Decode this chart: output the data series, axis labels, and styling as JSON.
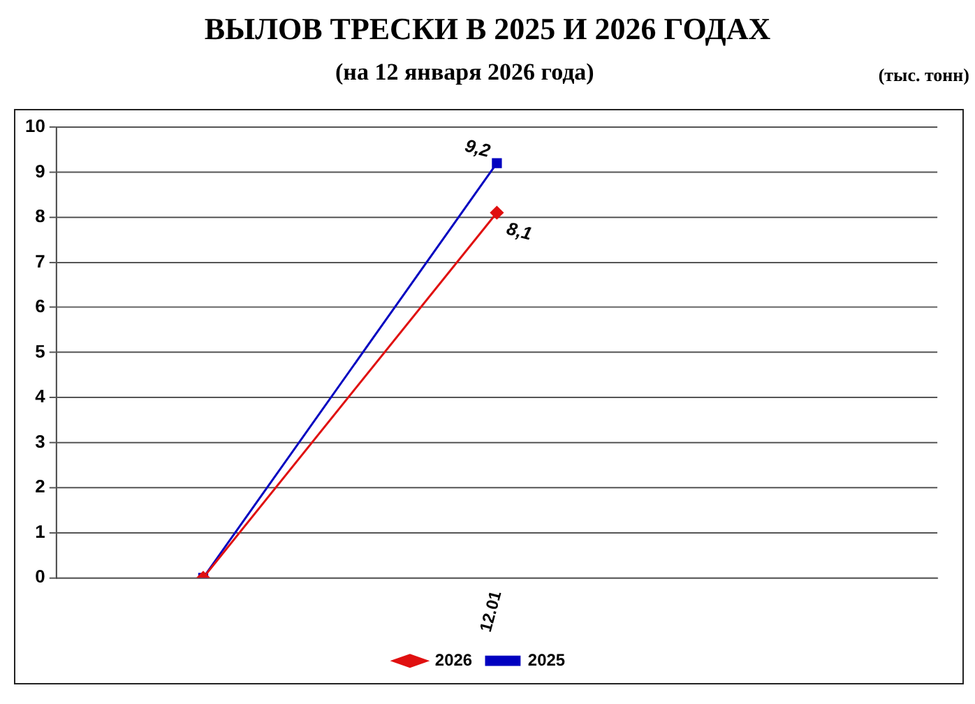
{
  "chart_data": {
    "type": "line",
    "title": "ВЫЛОВ ТРЕСКИ В 2025 И 2026 ГОДАХ",
    "subtitle": "(на 12 января 2026 года)",
    "annotations": [
      "(тыс. тонн)"
    ],
    "categories": [
      null,
      "12.01",
      null
    ],
    "series": [
      {
        "name": "2026",
        "color": "#e01010",
        "marker": "diamond",
        "values": [
          0,
          8.1,
          null
        ],
        "value_labels": [
          null,
          "8,1",
          null
        ]
      },
      {
        "name": "2025",
        "color": "#0000c0",
        "marker": "square",
        "values": [
          0,
          9.2,
          null
        ],
        "value_labels": [
          null,
          "9,2",
          null
        ]
      }
    ],
    "ylim": [
      0,
      10
    ],
    "yticks": [
      0,
      1,
      2,
      3,
      4,
      5,
      6,
      7,
      8,
      9,
      10
    ],
    "grid": "y",
    "legend": "bottom"
  }
}
